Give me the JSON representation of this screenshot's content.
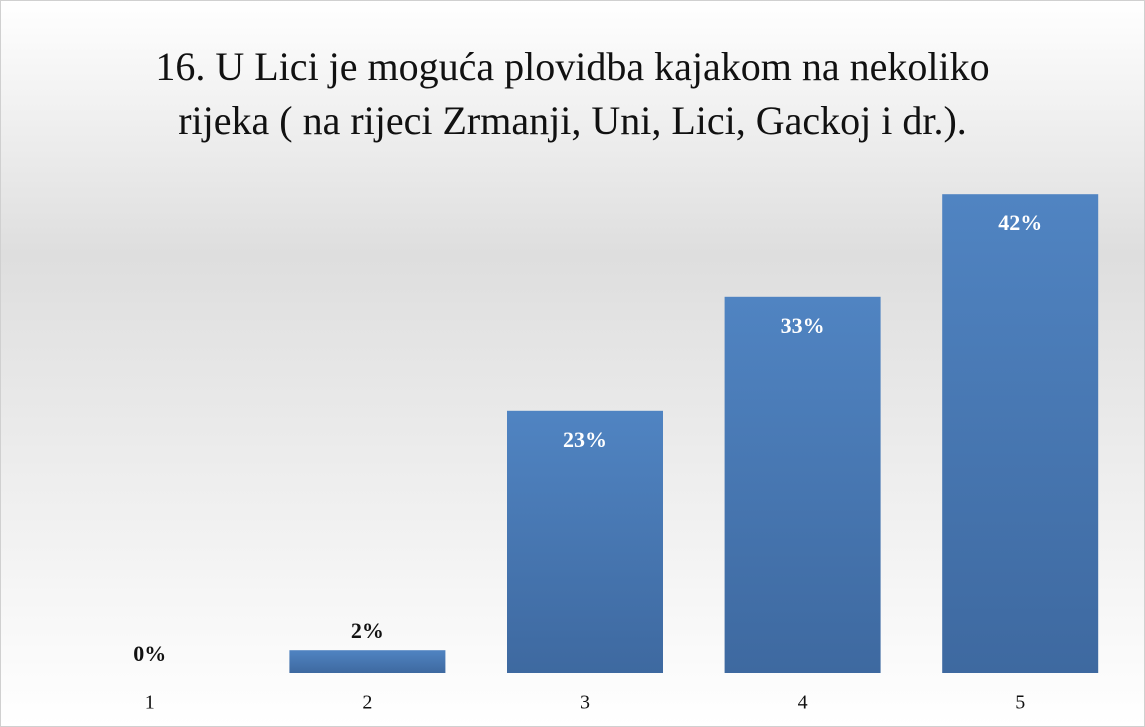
{
  "chart_data": {
    "type": "bar",
    "title": "16. U Lici je moguća plovidba kajakom na nekoliko rijeka ( na rijeci Zrmanji, Uni, Lici, Gackoj i dr.).",
    "categories": [
      "1",
      "2",
      "3",
      "4",
      "5"
    ],
    "values": [
      0,
      2,
      23,
      33,
      42
    ],
    "value_labels": [
      "0%",
      "2%",
      "23%",
      "33%",
      "42%"
    ],
    "color": "#4a7ab8",
    "ylim": [
      0,
      45
    ]
  }
}
